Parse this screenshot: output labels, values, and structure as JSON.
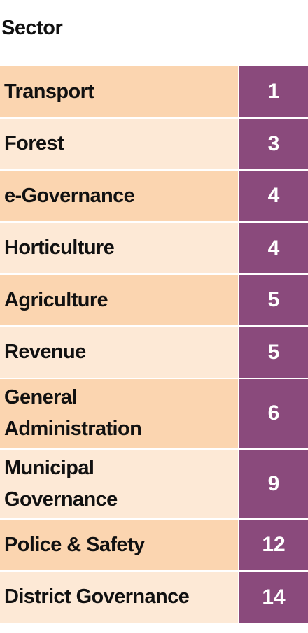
{
  "header": {
    "title": "Sector"
  },
  "table": {
    "rows": [
      [
        "Transport",
        1
      ],
      [
        "Forest",
        3
      ],
      [
        "e-Governance",
        4
      ],
      [
        "Horticulture",
        4
      ],
      [
        "Agriculture",
        5
      ],
      [
        "Revenue",
        5
      ],
      [
        "General\nAdministration",
        6
      ],
      [
        "Municipal\nGovernance",
        9
      ],
      [
        "Police & Safety",
        12
      ],
      [
        "District Governance",
        14
      ]
    ]
  }
}
